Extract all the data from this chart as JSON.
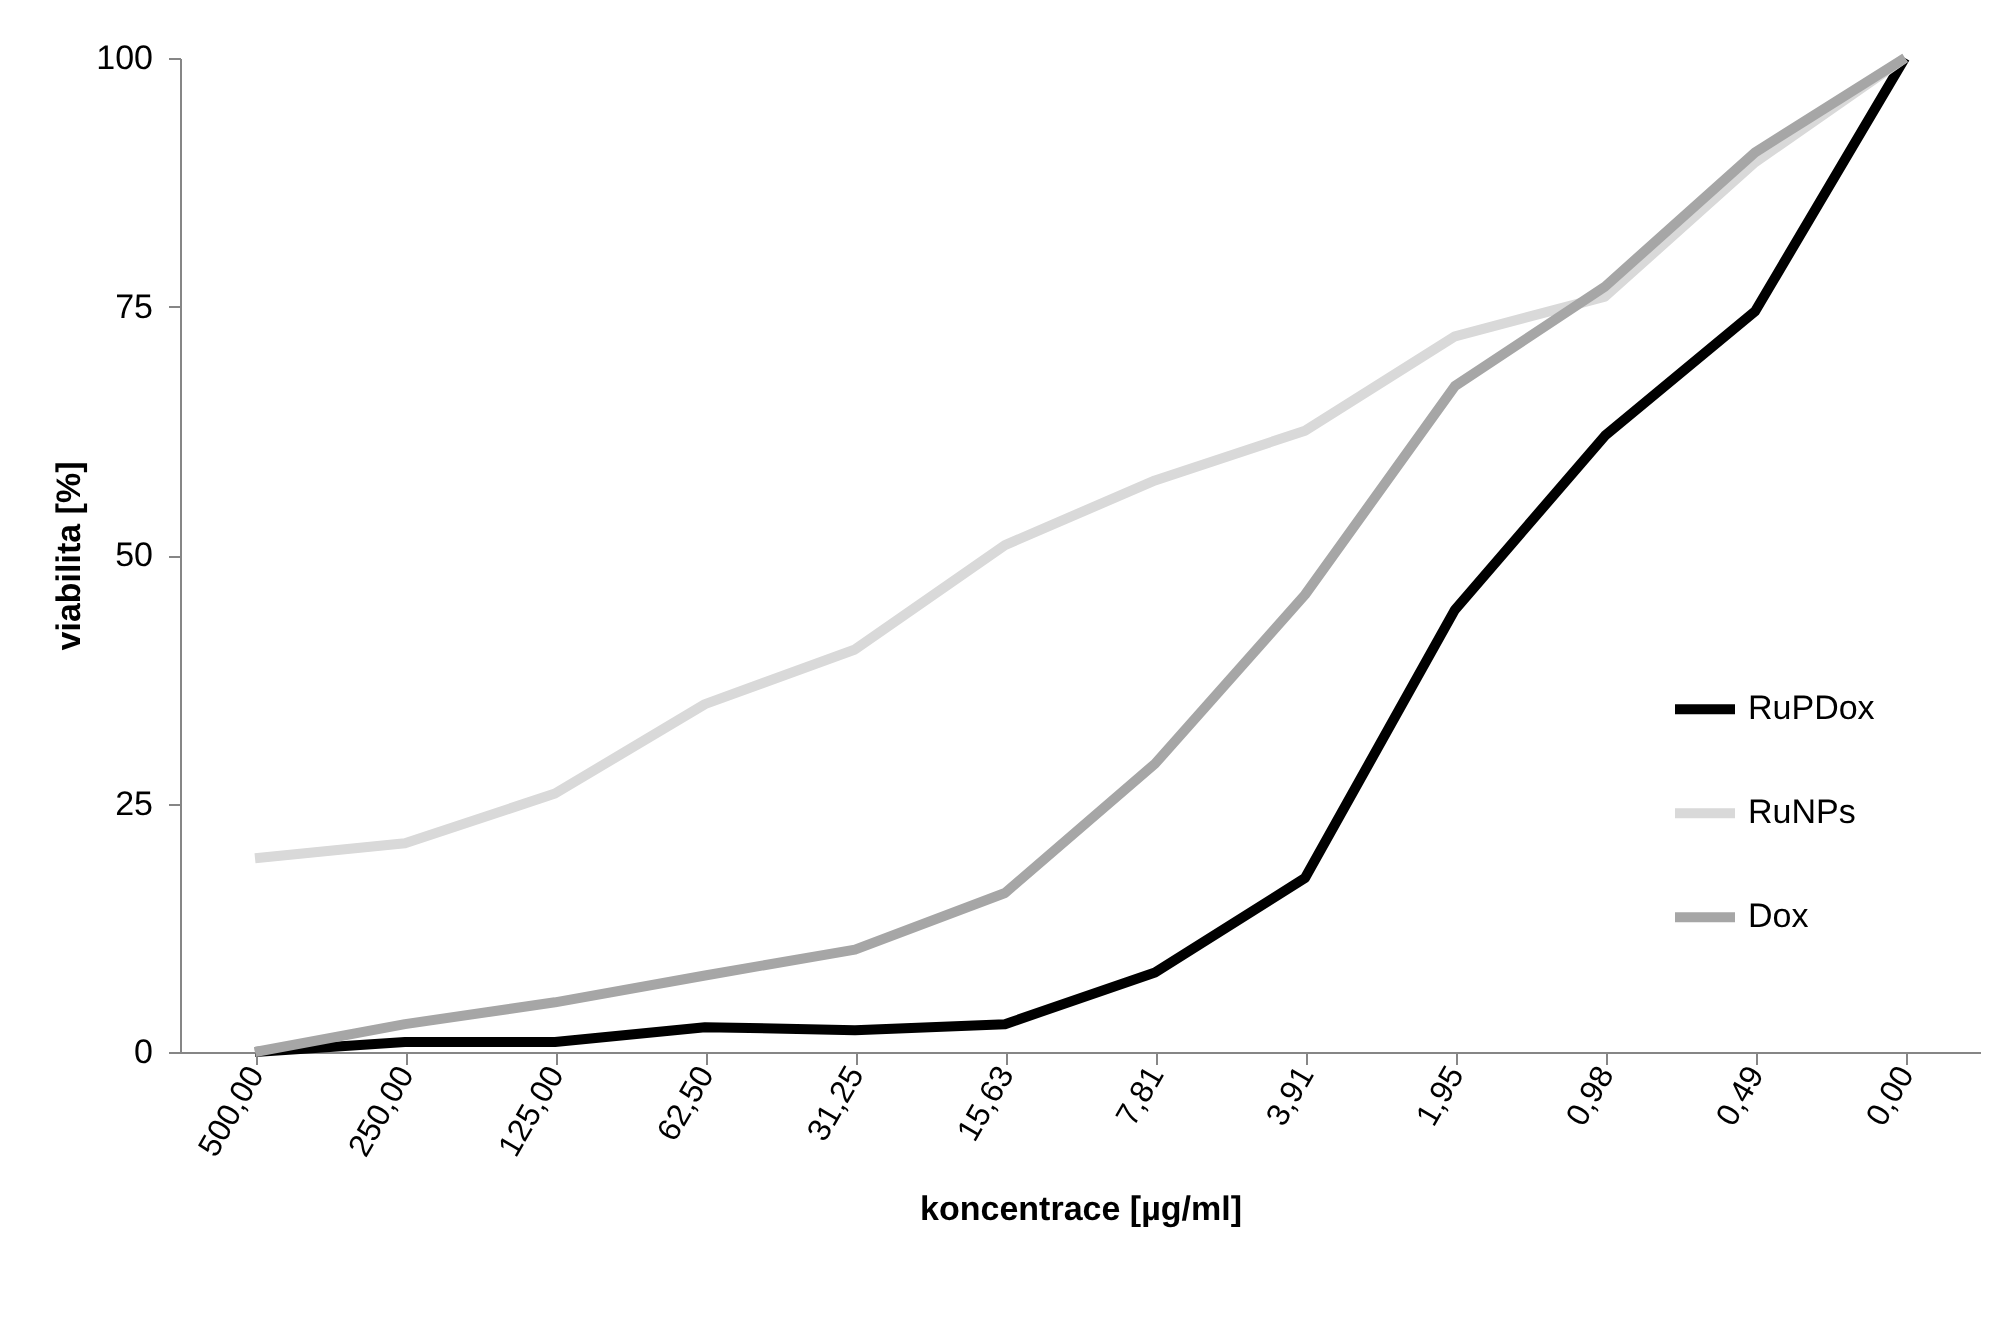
{
  "chart_data": {
    "type": "line",
    "xlabel": "koncentrace [µg/ml]",
    "ylabel": "viabilita [%]",
    "categories": [
      "500,00",
      "250,00",
      "125,00",
      "62,50",
      "31,25",
      "15,63",
      "7,81",
      "3,91",
      "1,95",
      "0,98",
      "0,49",
      "0,00"
    ],
    "series": [
      {
        "name": "RuPDox",
        "color": "#000000",
        "values": [
          0,
          1,
          1,
          2.5,
          2.2,
          2.8,
          8,
          17.5,
          44.5,
          62,
          74.5,
          100
        ]
      },
      {
        "name": "RuNPs",
        "color": "#d9d9d9",
        "values": [
          19.5,
          21,
          26,
          35,
          40.5,
          51,
          57.5,
          62.5,
          72,
          76,
          89.5,
          100
        ]
      },
      {
        "name": "Dox",
        "color": "#a6a6a6",
        "values": [
          0,
          2.8,
          5,
          7.7,
          10.3,
          16,
          29,
          46,
          67,
          77,
          90.5,
          100
        ]
      }
    ],
    "ylim": [
      0,
      100
    ],
    "yticks": [
      0,
      25,
      50,
      75,
      100
    ],
    "grid": false,
    "legend": "right",
    "marker": "none",
    "line_style": "solid"
  }
}
